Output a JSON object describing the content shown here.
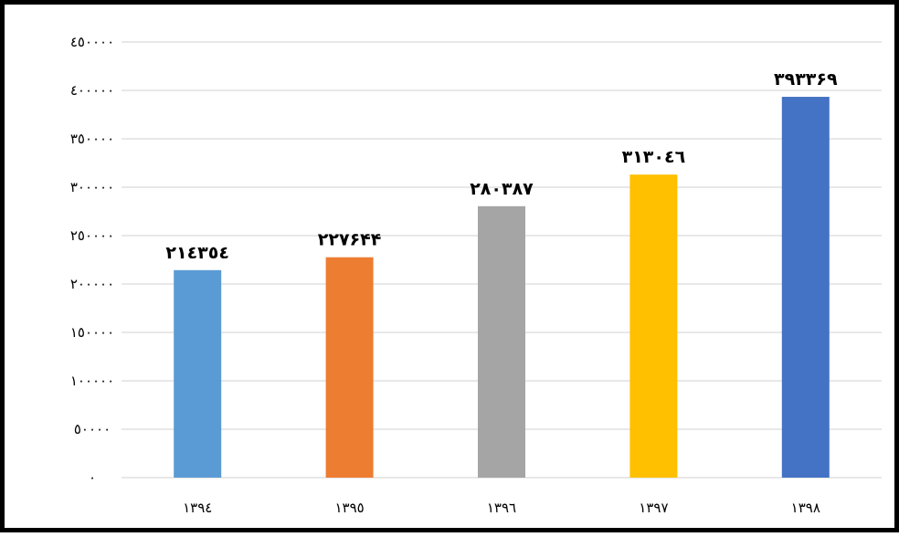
{
  "chart_data": {
    "type": "bar",
    "title": "",
    "xlabel": "",
    "ylabel": "",
    "categories": [
      "۱۳۹٤",
      "۱۳۹٥",
      "۱۳۹٦",
      "۱۳۹۷",
      "۱۳۹۸"
    ],
    "values": [
      214354,
      227644,
      280387,
      313046,
      393369
    ],
    "value_labels": [
      "۲۱٤۳٥٤",
      "۲۲۷۶۴۴",
      "۲۸۰۳۸۷",
      "۳۱۳۰٤٦",
      "۳۹۳۳۶۹"
    ],
    "colors": [
      "#5B9BD5",
      "#ED7D31",
      "#A5A5A5",
      "#FFC000",
      "#4472C4"
    ],
    "ylim": [
      0,
      450000
    ],
    "yticks": [
      0,
      50000,
      100000,
      150000,
      200000,
      250000,
      300000,
      350000,
      400000,
      450000
    ],
    "ytick_labels": [
      "۰",
      "٥۰۰۰۰",
      "۱۰۰۰۰۰",
      "۱٥۰۰۰۰",
      "۲۰۰۰۰۰",
      "۲٥۰۰۰۰",
      "۳۰۰۰۰۰",
      "۳٥۰۰۰۰",
      "٤۰۰۰۰۰",
      "٤٥۰۰۰۰"
    ],
    "grid": true,
    "gridline_color": "#D9D9D9",
    "legend": "none"
  }
}
